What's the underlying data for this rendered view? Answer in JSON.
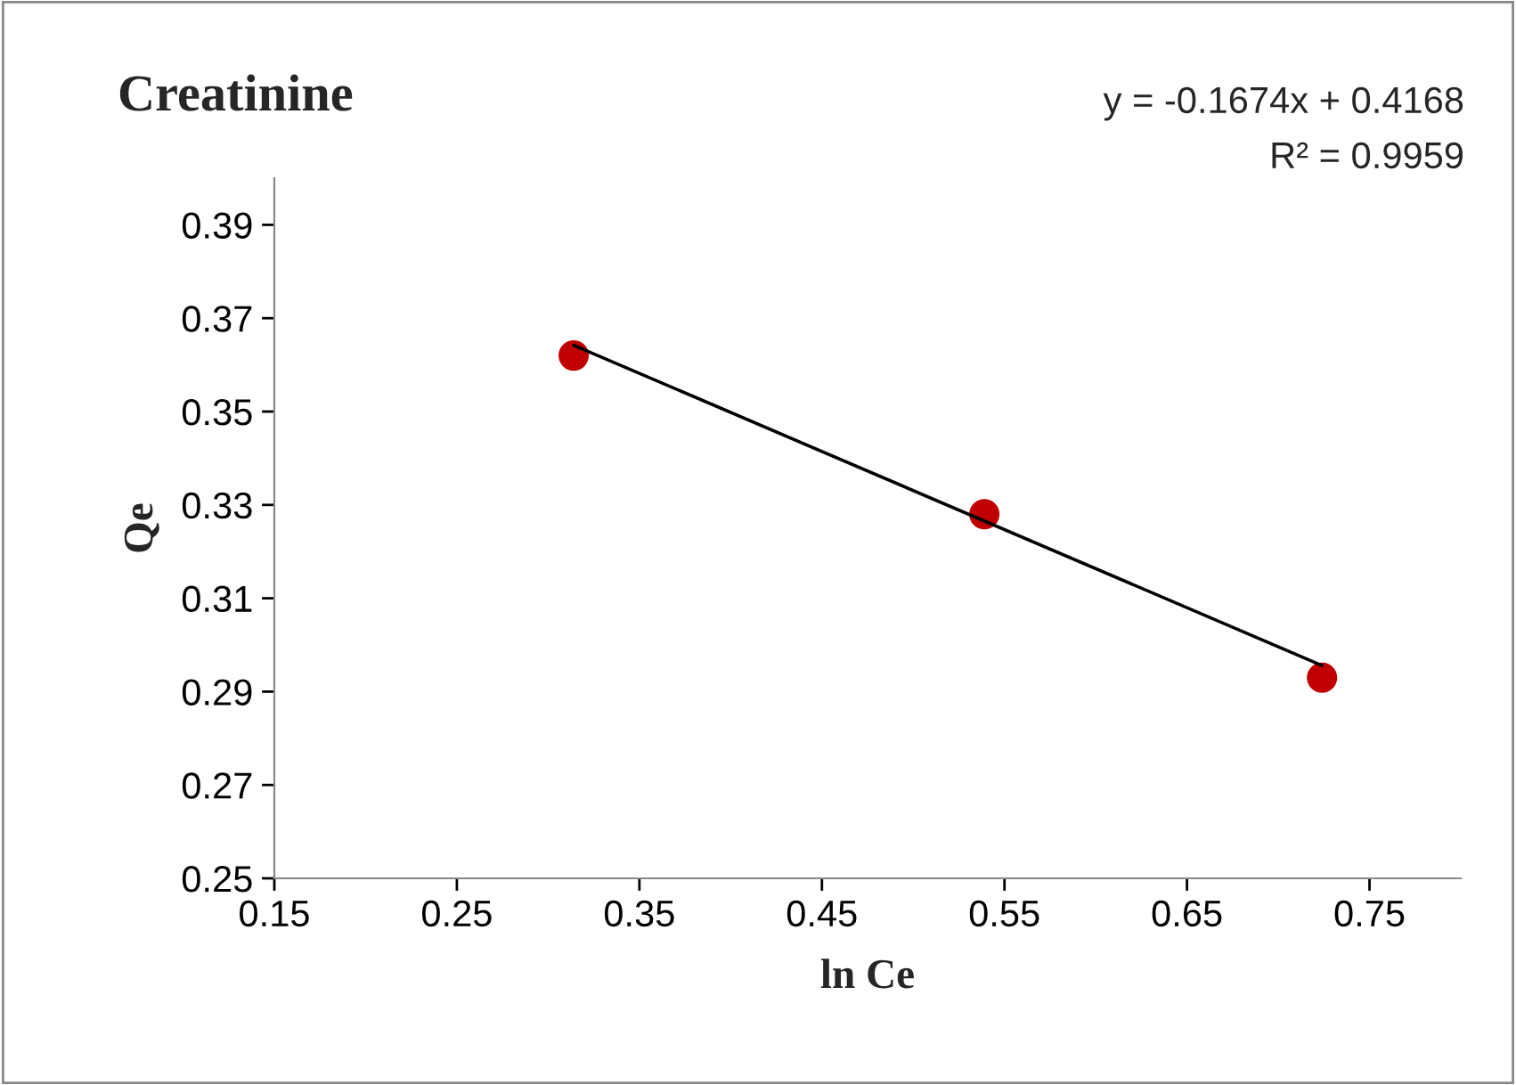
{
  "chart_data": {
    "type": "scatter",
    "title": "Creatinine",
    "xlabel": "ln Ce",
    "ylabel": "Qe",
    "annotations": [
      "y = -0.1674x + 0.4168",
      "R² = 0.9959"
    ],
    "series": [
      {
        "color": "#c00000",
        "marker": "circle",
        "x": [
          0.314,
          0.539,
          0.724
        ],
        "values": [
          0.362,
          0.328,
          0.293
        ]
      },
      {
        "type": "line",
        "color": "#000000",
        "marker": "none",
        "line_style": "solid",
        "x": [
          0.314,
          0.724
        ],
        "values": [
          0.3642,
          0.2956
        ]
      }
    ],
    "xlim": [
      0.15,
      0.8
    ],
    "xticks": [
      {
        "value": 0.15,
        "label": "0.15"
      },
      {
        "value": 0.25,
        "label": "0.25"
      },
      {
        "value": 0.35,
        "label": "0.35"
      },
      {
        "value": 0.45,
        "label": "0.45"
      },
      {
        "value": 0.55,
        "label": "0.55"
      },
      {
        "value": 0.65,
        "label": "0.65"
      },
      {
        "value": 0.75,
        "label": "0.75"
      }
    ],
    "ylim": [
      0.25,
      0.4
    ],
    "yticks": [
      {
        "value": 0.25,
        "label": "0.25"
      },
      {
        "value": 0.27,
        "label": "0.27"
      },
      {
        "value": 0.29,
        "label": "0.29"
      },
      {
        "value": 0.31,
        "label": "0.31"
      },
      {
        "value": 0.33,
        "label": "0.33"
      },
      {
        "value": 0.35,
        "label": "0.35"
      },
      {
        "value": 0.37,
        "label": "0.37"
      },
      {
        "value": 0.39,
        "label": "0.39"
      }
    ],
    "grid": false,
    "legend": false
  }
}
